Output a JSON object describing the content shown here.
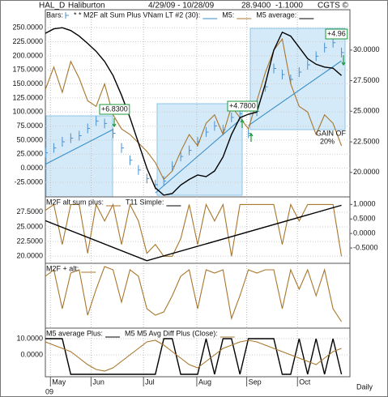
{
  "header": {
    "symbol": "HAL_D",
    "name": "Haliburton",
    "range": "4/29/09 - 10/28/09",
    "last": "28.9400",
    "change": "-1.1000",
    "credit": "CGTS ©"
  },
  "footer": "Daily",
  "chart_data": [
    {
      "type": "line",
      "grid": true,
      "x": [
        0,
        1,
        2,
        3,
        4,
        5,
        6,
        7,
        8,
        9,
        10,
        11,
        12,
        13,
        14,
        15,
        16,
        17,
        18,
        19,
        20,
        21,
        22,
        23,
        24,
        25,
        26,
        27,
        28,
        29,
        30,
        31,
        32,
        33,
        34,
        35
      ],
      "ylim": [
        -51,
        282
      ],
      "y2lim": [
        18,
        33.3
      ],
      "yticks": [
        {
          "value": 250,
          "label": "250.0000"
        },
        {
          "value": 225,
          "label": "225.0000"
        },
        {
          "value": 200,
          "label": "200.0000"
        },
        {
          "value": 175,
          "label": "175.0000"
        },
        {
          "value": 150,
          "label": "150.0000"
        },
        {
          "value": 125,
          "label": "125.0000"
        },
        {
          "value": 100,
          "label": "100.0000"
        },
        {
          "value": 75,
          "label": "75.0000"
        },
        {
          "value": 50,
          "label": "50.0000"
        },
        {
          "value": 25,
          "label": "25.0000"
        },
        {
          "value": 0,
          "label": "0.0000"
        },
        {
          "value": -25,
          "label": "-25.0000"
        }
      ],
      "y2ticks": [
        {
          "value": 30,
          "label": "30.0000"
        },
        {
          "value": 27.5,
          "label": "27.5000"
        },
        {
          "value": 25,
          "label": "25.0000"
        },
        {
          "value": 22.5,
          "label": "22.5000"
        },
        {
          "value": 20,
          "label": "20.0000"
        }
      ],
      "series": [
        {
          "name": "Bars:",
          "type": "bar",
          "axis": "y2",
          "color": "#4a90d0",
          "values": [
            21.6,
            22.0,
            22.5,
            22.8,
            23.0,
            23.6,
            24.2,
            24.0,
            23.2,
            22.0,
            21.0,
            20.2,
            19.5,
            19.0,
            19.3,
            20.5,
            21.3,
            21.8,
            22.5,
            23.3,
            23.8,
            23.5,
            24.5,
            24.8,
            23.2,
            25.0,
            27.0,
            28.5,
            28.0,
            27.6,
            28.2,
            28.8,
            29.5,
            30.2,
            30.6,
            29.8
          ]
        },
        {
          "name": "* * M2F alt Sum Plus VNam LT #2 (30):",
          "color": "#3a8fc8",
          "x": [
            0,
            8,
            8.5,
            13,
            23,
            23.5,
            24,
            35
          ],
          "values": [
            7,
            69,
            null,
            -44,
            86,
            null,
            76,
            191
          ]
        },
        {
          "name": "M5:",
          "color": "#a8762c",
          "values": [
            140,
            180,
            135,
            190,
            160,
            120,
            110,
            150,
            95,
            70,
            60,
            45,
            30,
            10,
            -20,
            -5,
            30,
            60,
            40,
            80,
            95,
            60,
            110,
            90,
            70,
            120,
            170,
            210,
            230,
            150,
            110,
            100,
            60,
            95,
            80,
            40
          ]
        },
        {
          "name": "M5 average:",
          "color": "#000000",
          "values": [
            240,
            248,
            250,
            245,
            235,
            222,
            208,
            190,
            165,
            130,
            90,
            45,
            0,
            -35,
            -48,
            -45,
            -30,
            -20,
            -12,
            -15,
            -5,
            20,
            60,
            90,
            96,
            100,
            150,
            210,
            242,
            235,
            215,
            195,
            185,
            180,
            178,
            165
          ]
        }
      ],
      "annotations": [
        "+6.8300",
        "+4.7800",
        "+4.96",
        "GAIN OF",
        "20%"
      ]
    },
    {
      "type": "line",
      "grid": true,
      "x": [
        0,
        1,
        2,
        3,
        4,
        5,
        6,
        7,
        8,
        9,
        10,
        11,
        12,
        13,
        14,
        15,
        16,
        17,
        18,
        19,
        20,
        21,
        22,
        23,
        24,
        25,
        26,
        27,
        28,
        29,
        30,
        31,
        32,
        33,
        34,
        35
      ],
      "ylim": [
        18.8,
        30.1
      ],
      "y2lim": [
        -1.03,
        1.26
      ],
      "yticks": [
        {
          "value": 27.5,
          "label": "27.5000"
        },
        {
          "value": 25,
          "label": "25.0000"
        },
        {
          "value": 22.5,
          "label": "22.5000"
        },
        {
          "value": 20,
          "label": "20.0000"
        }
      ],
      "y2ticks": [
        {
          "value": 1,
          "label": "1.0000"
        },
        {
          "value": 0.5,
          "label": "0.5000"
        },
        {
          "value": 0,
          "label": "0.0000"
        },
        {
          "value": -0.5,
          "label": "-0.5000"
        }
      ],
      "series": [
        {
          "name": "M2F alt sum plus:",
          "color": "#a8762c",
          "values": [
            27.8,
            28.8,
            22,
            28.8,
            28.8,
            20.5,
            28.8,
            26,
            28.8,
            22,
            28.8,
            26,
            20.5,
            22,
            20,
            20,
            23,
            28.8,
            22,
            28.8,
            26,
            28.8,
            20,
            28.8,
            28.8,
            28.8,
            28.8,
            28.8,
            22,
            28.8,
            26,
            28.8,
            28.8,
            28.8,
            28.8,
            20
          ]
        },
        {
          "name": "T11 Simple:",
          "color": "#000000",
          "axis": "y2",
          "x": [
            0,
            12,
            35
          ],
          "values": [
            0.44,
            -0.94,
            0.97
          ]
        }
      ]
    },
    {
      "type": "line",
      "grid": true,
      "x": [
        0,
        1,
        2,
        3,
        4,
        5,
        6,
        7,
        8,
        9,
        10,
        11,
        12,
        13,
        14,
        15,
        16,
        17,
        18,
        19,
        20,
        21,
        22,
        23,
        24,
        25,
        26,
        27,
        28,
        29,
        30,
        31,
        32,
        33,
        34,
        35
      ],
      "ylim": [
        0,
        1
      ],
      "series": [
        {
          "name": "M2F + alt:",
          "color": "#a8762c",
          "values": [
            0.8,
            0.9,
            0.3,
            0.85,
            0.9,
            0.2,
            0.6,
            0.95,
            0.9,
            0.4,
            0.9,
            0.8,
            0.3,
            0.2,
            0.25,
            0.5,
            0.8,
            0.9,
            0.3,
            0.9,
            0.85,
            0.9,
            0.15,
            0.5,
            0.9,
            0.85,
            0.9,
            0.9,
            0.3,
            0.9,
            0.6,
            0.9,
            0.5,
            0.9,
            0.3,
            0.1
          ]
        }
      ]
    },
    {
      "type": "line",
      "grid": true,
      "x": [
        0,
        1,
        2,
        3,
        4,
        5,
        6,
        7,
        8,
        9,
        10,
        11,
        12,
        13,
        14,
        15,
        16,
        17,
        18,
        19,
        20,
        21,
        22,
        23,
        24,
        25,
        26,
        27,
        28,
        29,
        30,
        31,
        32,
        33,
        34,
        35
      ],
      "xlim": [
        0,
        36
      ],
      "xlabel": "09",
      "xticks": [
        {
          "value": 0.6,
          "label": "May"
        },
        {
          "value": 5.4,
          "label": "Jun"
        },
        {
          "value": 11.6,
          "label": "Jul"
        },
        {
          "value": 17.9,
          "label": "Aug"
        },
        {
          "value": 23.8,
          "label": "Sep"
        },
        {
          "value": 29.8,
          "label": "Oct"
        }
      ],
      "ylim": [
        -13.5,
        16.5
      ],
      "yticks": [
        {
          "value": 10,
          "label": "10.0000"
        },
        {
          "value": 0,
          "label": "0.0000"
        }
      ],
      "series": [
        {
          "name": "M5 average Plus:",
          "color": "#000000",
          "values": [
            10,
            10,
            10,
            -12,
            -12,
            -12,
            -12,
            -12,
            -12,
            -12,
            -12,
            -12,
            -12,
            -12,
            10,
            10,
            -12,
            -12,
            -12,
            10,
            -12,
            10,
            10,
            -12,
            10,
            10,
            10,
            10,
            -12,
            -12,
            10,
            -12,
            10,
            -12,
            10,
            -12
          ]
        },
        {
          "name": "M5 M5 Avg Diff Plus (Close):",
          "color": "#a8762c",
          "values": [
            8,
            6,
            4,
            2,
            -2,
            -6,
            -9,
            -10,
            -8,
            -4,
            0,
            4,
            8,
            9,
            6,
            2,
            -2,
            -6,
            -8,
            -4,
            0,
            4,
            6,
            8,
            9,
            8,
            6,
            4,
            2,
            0,
            -2,
            -4,
            -6,
            -2,
            2,
            4
          ]
        }
      ]
    }
  ]
}
